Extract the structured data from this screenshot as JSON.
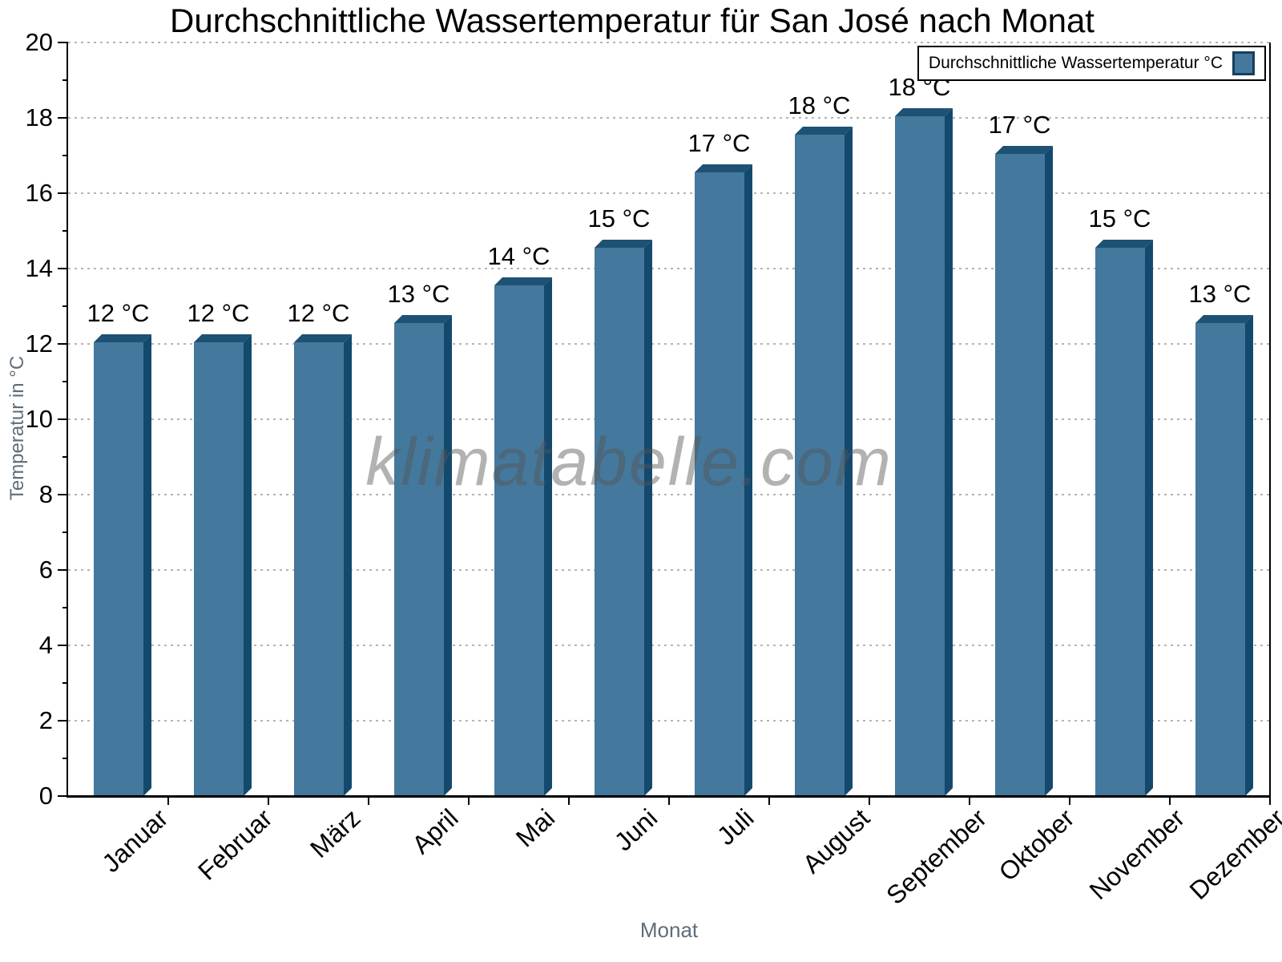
{
  "title": "Durchschnittliche Wassertemperatur für San José nach Monat",
  "legend": {
    "label": "Durchschnittliche Wassertemperatur °C"
  },
  "watermark": "klimatabelle.com",
  "axes": {
    "y_title": "Temperatur in °C",
    "x_title": "Monat",
    "y_min": 0,
    "y_max": 20,
    "y_major_step": 2,
    "y_minor_step": 1
  },
  "colors": {
    "bar_face": "#44789D",
    "bar_side": "#14496E",
    "bar_top": "#1D5274",
    "gridline": "#B4B4B4",
    "axis_text_gray": "#5F6D79",
    "axis_line": "#000000",
    "watermark_gray": "#A8A8A8"
  },
  "chart_data": {
    "type": "bar",
    "title": "Durchschnittliche Wassertemperatur für San José nach Monat",
    "xlabel": "Monat",
    "ylabel": "Temperatur in °C",
    "ylim": [
      0,
      20
    ],
    "y_ticks": [
      0,
      2,
      4,
      6,
      8,
      10,
      12,
      14,
      16,
      18,
      20
    ],
    "grid": "dotted horizontal lines at even values",
    "legend_position": "top-right",
    "series_name": "Durchschnittliche Wassertemperatur °C",
    "categories": [
      "Januar",
      "Februar",
      "März",
      "April",
      "Mai",
      "Juni",
      "Juli",
      "August",
      "September",
      "Oktober",
      "November",
      "Dezember"
    ],
    "values": [
      12.05,
      12.05,
      12.05,
      12.55,
      13.55,
      14.55,
      16.55,
      17.55,
      18.05,
      17.05,
      14.55,
      12.55
    ],
    "value_labels": [
      "12 °C",
      "12 °C",
      "12 °C",
      "13 °C",
      "14 °C",
      "15 °C",
      "17 °C",
      "18 °C",
      "18 °C",
      "17 °C",
      "15 °C",
      "13 °C"
    ]
  }
}
